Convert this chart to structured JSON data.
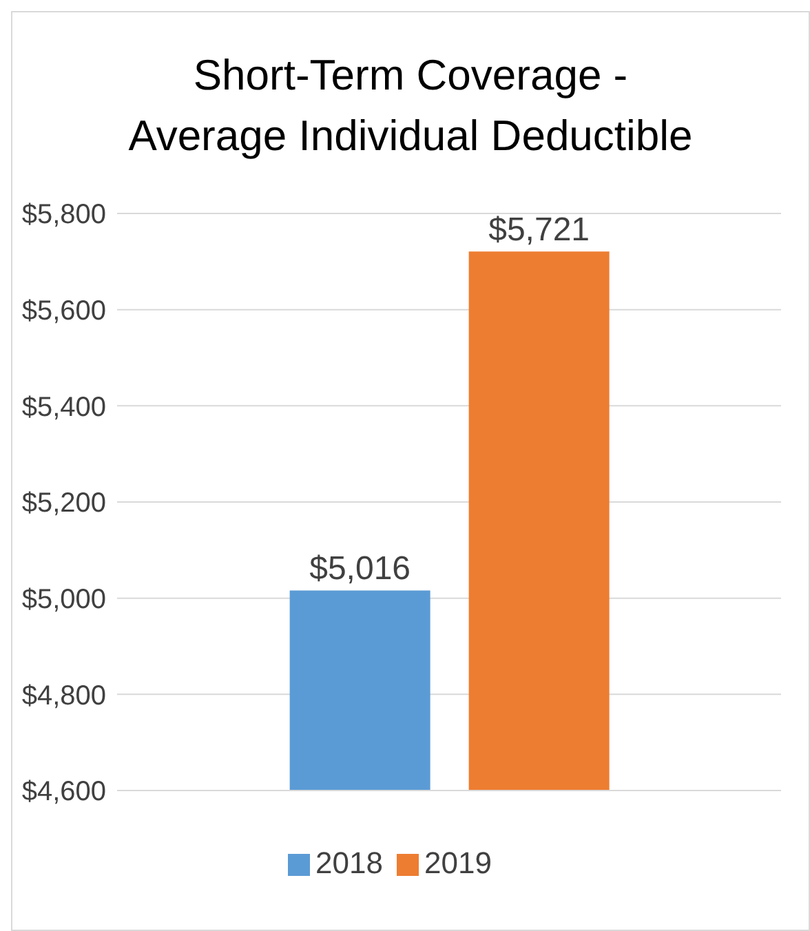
{
  "chart_data": {
    "type": "bar",
    "title": "Short-Term Coverage -\nAverage Individual Deductible",
    "categories": [
      null
    ],
    "series": [
      {
        "name": "2018",
        "color": "#5b9bd5",
        "values": [
          5016
        ],
        "value_labels": [
          "$5,016"
        ]
      },
      {
        "name": "2019",
        "color": "#ed7d31",
        "values": [
          5721
        ],
        "value_labels": [
          "$5,721"
        ]
      }
    ],
    "ylim": [
      4600,
      5800
    ],
    "yticks": [
      {
        "value": 4600,
        "label": "$4,600"
      },
      {
        "value": 4800,
        "label": "$4,800"
      },
      {
        "value": 5000,
        "label": "$5,000"
      },
      {
        "value": 5200,
        "label": "$5,200"
      },
      {
        "value": 5400,
        "label": "$5,400"
      },
      {
        "value": 5600,
        "label": "$5,600"
      },
      {
        "value": 5800,
        "label": "$5,800"
      }
    ],
    "grid": "y",
    "legend": "bottom"
  }
}
